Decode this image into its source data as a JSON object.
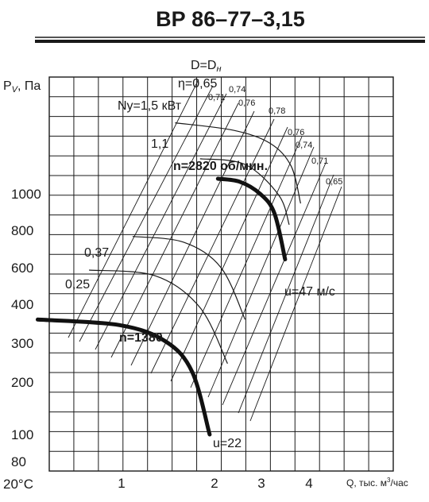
{
  "chart_data": {
    "type": "line",
    "title": "ВР 86–77–3,15",
    "diameter_label": "D=D",
    "diameter_subscript": "н",
    "ylabel": "P",
    "ylabel_sub": "V",
    "ylabel_unit": ", Па",
    "xlabel": "Q, тыс. м",
    "xlabel_sup": "3",
    "xlabel_unit": "/час",
    "temperature": "20°С",
    "x_ticks": [
      {
        "v": 1,
        "label": "1"
      },
      {
        "v": 2,
        "label": "2"
      },
      {
        "v": 3,
        "label": "3"
      },
      {
        "v": 4,
        "label": "4"
      }
    ],
    "y_ticks": [
      {
        "v": 80,
        "label": "80"
      },
      {
        "v": 100,
        "label": "100"
      },
      {
        "v": 200,
        "label": "200"
      },
      {
        "v": 300,
        "label": "300"
      },
      {
        "v": 400,
        "label": "400"
      },
      {
        "v": 600,
        "label": "600"
      },
      {
        "v": 800,
        "label": "800"
      },
      {
        "v": 1000,
        "label": "1000"
      }
    ],
    "series": [
      {
        "name": "n=2820 об/мин.",
        "style": "bold",
        "x": [
          2.05,
          2.4,
          2.8,
          3.1,
          3.35
        ],
        "y": [
          1110,
          1080,
          960,
          800,
          520
        ]
      },
      {
        "name": "n=1380",
        "style": "bold",
        "x": [
          0.55,
          1.0,
          1.4,
          1.7,
          1.93
        ],
        "y": [
          295,
          280,
          240,
          180,
          100
        ]
      }
    ],
    "power_curves": [
      {
        "label": "Ny=1,5 кВт",
        "x": [
          1.5,
          2.3,
          3.0,
          3.5,
          3.75
        ],
        "y": [
          1880,
          1750,
          1550,
          1250,
          880
        ]
      },
      {
        "label": "1,1",
        "x": [
          1.8,
          2.5,
          3.2,
          3.45
        ],
        "y": [
          1340,
          1270,
          950,
          720
        ]
      },
      {
        "label": "0,37",
        "x": [
          1.1,
          1.6,
          2.1,
          2.5
        ],
        "y": [
          645,
          610,
          480,
          295
        ]
      },
      {
        "label": "0,25",
        "x": [
          0.8,
          1.3,
          1.8,
          2.2
        ],
        "y": [
          470,
          445,
          330,
          195
        ]
      }
    ],
    "efficiency_labels": [
      "η=0,65",
      "0,71",
      "0,74",
      "0,76",
      "0,78",
      "0,76",
      "0,74",
      "0,71",
      "0,65"
    ],
    "velocity_labels": [
      "u=47 м/с",
      "u=22"
    ]
  }
}
